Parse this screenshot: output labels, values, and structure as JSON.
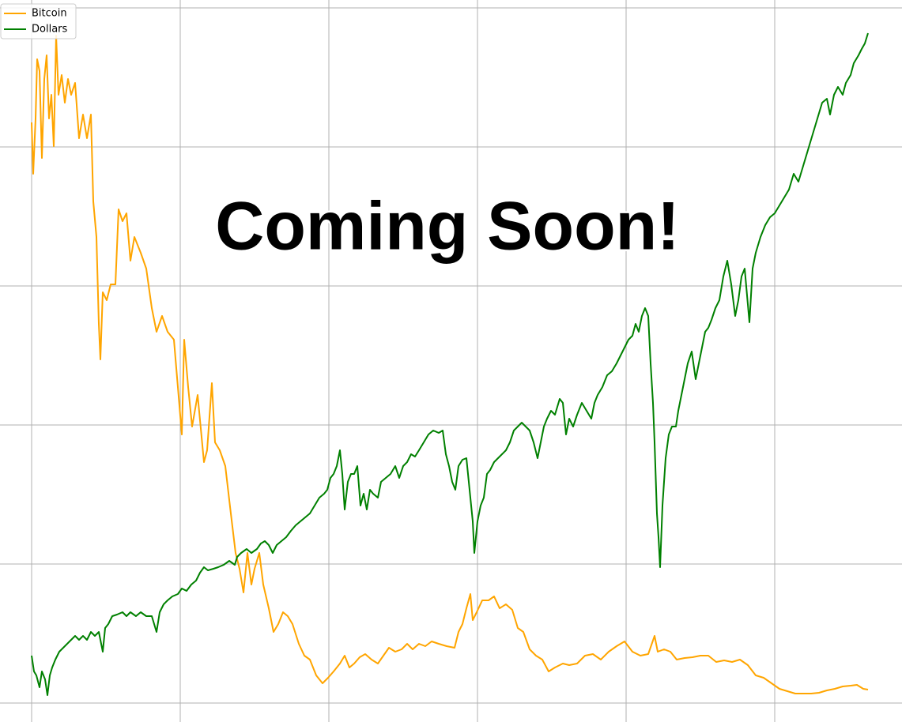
{
  "chart_data": {
    "type": "line",
    "annotation": "Coming Soon!",
    "legend": "upper left",
    "grid": true,
    "xlim": [
      -40,
      1101
    ],
    "ylim": [
      -24,
      890
    ],
    "xticks": [
      0,
      188,
      376,
      564,
      752,
      940
    ],
    "yticks": [
      0,
      176,
      352,
      528,
      704,
      880
    ],
    "series": [
      {
        "name": "Bitcoin",
        "color": "#ffa500",
        "x": [
          0,
          2,
          5,
          7,
          10,
          13,
          16,
          19,
          22,
          25,
          28,
          31,
          34,
          38,
          42,
          46,
          50,
          55,
          60,
          65,
          70,
          75,
          78,
          82,
          85,
          87,
          90,
          95,
          100,
          106,
          110,
          115,
          120,
          125,
          130,
          138,
          145,
          152,
          158,
          165,
          172,
          180,
          185,
          190,
          193,
          198,
          203,
          210,
          218,
          222,
          228,
          232,
          238,
          245,
          252,
          258,
          263,
          268,
          273,
          278,
          282,
          288,
          293,
          300,
          306,
          312,
          318,
          324,
          330,
          338,
          345,
          352,
          360,
          368,
          375,
          382,
          390,
          396,
          402,
          408,
          415,
          422,
          430,
          438,
          445,
          452,
          460,
          468,
          475,
          482,
          490,
          498,
          506,
          515,
          525,
          535,
          540,
          545,
          550,
          555,
          558,
          563,
          570,
          578,
          585,
          592,
          600,
          608,
          615,
          622,
          630,
          638,
          646,
          654,
          662,
          672,
          680,
          690,
          700,
          710,
          720,
          730,
          740,
          750,
          760,
          770,
          780,
          788,
          792,
          800,
          808,
          816,
          826,
          836,
          846,
          856,
          866,
          876,
          886,
          896,
          906,
          916,
          926,
          936,
          946,
          956,
          966,
          976,
          986,
          996,
          1006,
          1016,
          1026,
          1036,
          1044,
          1052,
          1058
        ],
        "values": [
          735,
          670,
          740,
          815,
          800,
          690,
          790,
          820,
          740,
          770,
          705,
          845,
          770,
          795,
          760,
          790,
          770,
          785,
          715,
          745,
          715,
          745,
          635,
          590,
          480,
          435,
          520,
          510,
          530,
          530,
          625,
          610,
          620,
          560,
          590,
          570,
          550,
          500,
          470,
          490,
          470,
          460,
          400,
          340,
          460,
          400,
          350,
          390,
          305,
          320,
          405,
          330,
          320,
          300,
          240,
          190,
          170,
          140,
          190,
          150,
          170,
          190,
          150,
          120,
          90,
          100,
          115,
          110,
          100,
          75,
          60,
          55,
          35,
          25,
          32,
          40,
          50,
          60,
          45,
          50,
          58,
          62,
          55,
          50,
          60,
          70,
          65,
          68,
          75,
          68,
          75,
          72,
          78,
          75,
          72,
          70,
          90,
          100,
          120,
          138,
          105,
          115,
          130,
          130,
          135,
          120,
          125,
          118,
          95,
          90,
          68,
          60,
          55,
          40,
          45,
          50,
          48,
          50,
          60,
          62,
          55,
          65,
          72,
          78,
          65,
          60,
          62,
          85,
          65,
          68,
          65,
          55,
          57,
          58,
          60,
          60,
          52,
          54,
          52,
          55,
          48,
          35,
          32,
          25,
          18,
          15,
          12,
          12,
          12,
          13,
          16,
          18,
          21,
          22,
          23,
          18,
          17
        ]
      },
      {
        "name": "Dollars",
        "color": "#008000",
        "x": [
          0,
          3,
          6,
          10,
          13,
          17,
          20,
          23,
          26,
          30,
          35,
          40,
          45,
          50,
          55,
          60,
          65,
          70,
          75,
          80,
          85,
          90,
          93,
          97,
          102,
          108,
          115,
          120,
          125,
          132,
          138,
          145,
          152,
          158,
          162,
          167,
          172,
          178,
          185,
          190,
          196,
          202,
          208,
          213,
          218,
          223,
          230,
          236,
          243,
          250,
          257,
          260,
          265,
          272,
          278,
          285,
          290,
          295,
          300,
          305,
          310,
          316,
          322,
          328,
          334,
          340,
          346,
          352,
          358,
          364,
          370,
          374,
          378,
          382,
          386,
          390,
          393,
          396,
          400,
          404,
          408,
          412,
          416,
          420,
          424,
          428,
          432,
          438,
          442,
          448,
          454,
          460,
          465,
          470,
          475,
          480,
          485,
          490,
          496,
          502,
          508,
          515,
          520,
          524,
          528,
          532,
          536,
          540,
          545,
          550,
          554,
          558,
          560,
          564,
          568,
          572,
          576,
          580,
          585,
          590,
          595,
          600,
          605,
          610,
          615,
          620,
          625,
          630,
          635,
          640,
          644,
          648,
          652,
          657,
          662,
          668,
          672,
          676,
          680,
          685,
          690,
          696,
          702,
          708,
          712,
          716,
          722,
          728,
          734,
          740,
          745,
          750,
          755,
          760,
          764,
          768,
          772,
          776,
          780,
          783,
          786,
          788,
          791,
          793,
          795,
          798,
          802,
          806,
          810,
          815,
          818,
          822,
          826,
          830,
          835,
          840,
          844,
          848,
          852,
          856,
          860,
          865,
          870,
          875,
          880,
          885,
          890,
          894,
          898,
          902,
          908,
          912,
          916,
          922,
          928,
          934,
          940,
          946,
          952,
          958,
          964,
          970,
          976,
          982,
          988,
          994,
          1000,
          1006,
          1010,
          1015,
          1020,
          1026,
          1030,
          1036,
          1040,
          1046,
          1050,
          1054,
          1058
        ],
        "values": [
          60,
          40,
          35,
          20,
          40,
          30,
          10,
          35,
          45,
          55,
          65,
          70,
          75,
          80,
          85,
          80,
          85,
          80,
          90,
          85,
          90,
          65,
          95,
          100,
          110,
          112,
          115,
          110,
          115,
          110,
          115,
          110,
          110,
          90,
          115,
          125,
          130,
          135,
          138,
          145,
          142,
          150,
          155,
          165,
          172,
          168,
          170,
          172,
          175,
          180,
          175,
          185,
          190,
          195,
          190,
          195,
          202,
          205,
          200,
          190,
          200,
          205,
          210,
          218,
          225,
          230,
          235,
          240,
          250,
          260,
          265,
          270,
          285,
          290,
          300,
          320,
          290,
          245,
          280,
          290,
          290,
          300,
          250,
          265,
          245,
          270,
          265,
          260,
          280,
          285,
          290,
          300,
          285,
          300,
          305,
          315,
          312,
          320,
          330,
          340,
          345,
          342,
          345,
          315,
          300,
          280,
          270,
          300,
          308,
          310,
          270,
          230,
          190,
          230,
          250,
          260,
          290,
          295,
          305,
          310,
          315,
          320,
          330,
          345,
          350,
          355,
          350,
          345,
          330,
          310,
          330,
          350,
          360,
          370,
          365,
          385,
          380,
          340,
          360,
          350,
          365,
          380,
          370,
          360,
          380,
          390,
          400,
          415,
          420,
          430,
          440,
          450,
          460,
          465,
          480,
          470,
          490,
          500,
          490,
          430,
          380,
          330,
          240,
          210,
          172,
          250,
          310,
          340,
          350,
          350,
          370,
          390,
          410,
          430,
          445,
          410,
          430,
          450,
          470,
          475,
          485,
          500,
          510,
          540,
          560,
          530,
          490,
          510,
          540,
          550,
          482,
          550,
          570,
          590,
          605,
          615,
          620,
          630,
          640,
          650,
          670,
          660,
          680,
          700,
          720,
          740,
          760,
          765,
          745,
          770,
          780,
          770,
          785,
          795,
          810,
          820,
          828,
          835,
          848
        ]
      }
    ]
  }
}
